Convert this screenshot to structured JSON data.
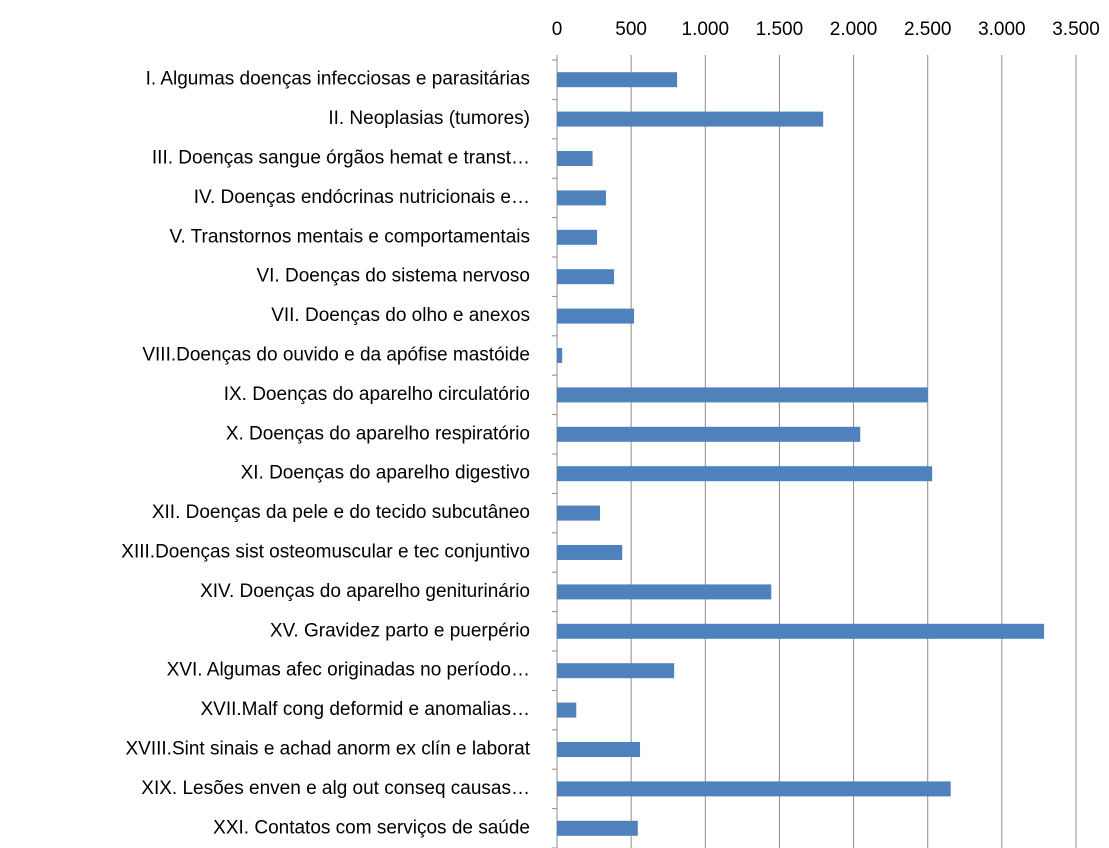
{
  "chart_data": {
    "type": "bar",
    "orientation": "horizontal",
    "categories": [
      "I. Algumas doenças infecciosas e parasitárias",
      "II. Neoplasias (tumores)",
      "III. Doenças sangue órgãos hemat e transt…",
      "IV. Doenças endócrinas nutricionais e…",
      "V. Transtornos mentais e comportamentais",
      "VI. Doenças do sistema nervoso",
      "VII. Doenças do olho e anexos",
      "VIII.Doenças do ouvido e da apófise mastóide",
      "IX. Doenças do aparelho circulatório",
      "X. Doenças do aparelho respiratório",
      "XI. Doenças do aparelho digestivo",
      "XII. Doenças da pele e do tecido subcutâneo",
      "XIII.Doenças sist osteomuscular e tec conjuntivo",
      "XIV. Doenças do aparelho geniturinário",
      "XV. Gravidez parto e puerpério",
      "XVI. Algumas afec originadas no período…",
      "XVII.Malf cong deformid e anomalias…",
      "XVIII.Sint sinais e achad anorm ex clín e laborat",
      "XIX. Lesões enven e alg out conseq causas…",
      "XXI. Contatos com serviços de saúde"
    ],
    "values": [
      810,
      1795,
      240,
      330,
      270,
      385,
      520,
      35,
      2500,
      2045,
      2530,
      290,
      440,
      1445,
      3285,
      790,
      130,
      560,
      2655,
      545
    ],
    "color": "#4f81bd",
    "xlim": [
      0,
      3500
    ],
    "xticks": [
      0,
      500,
      {
        "value": 1000,
        "label": "1.000"
      },
      {
        "value": 1500,
        "label": "1.500"
      },
      {
        "value": 2000,
        "label": "2.000"
      },
      {
        "value": 2500,
        "label": "2.500"
      },
      {
        "value": 3000,
        "label": "3.000"
      },
      {
        "value": 3500,
        "label": "3.500"
      }
    ],
    "grid": true
  }
}
